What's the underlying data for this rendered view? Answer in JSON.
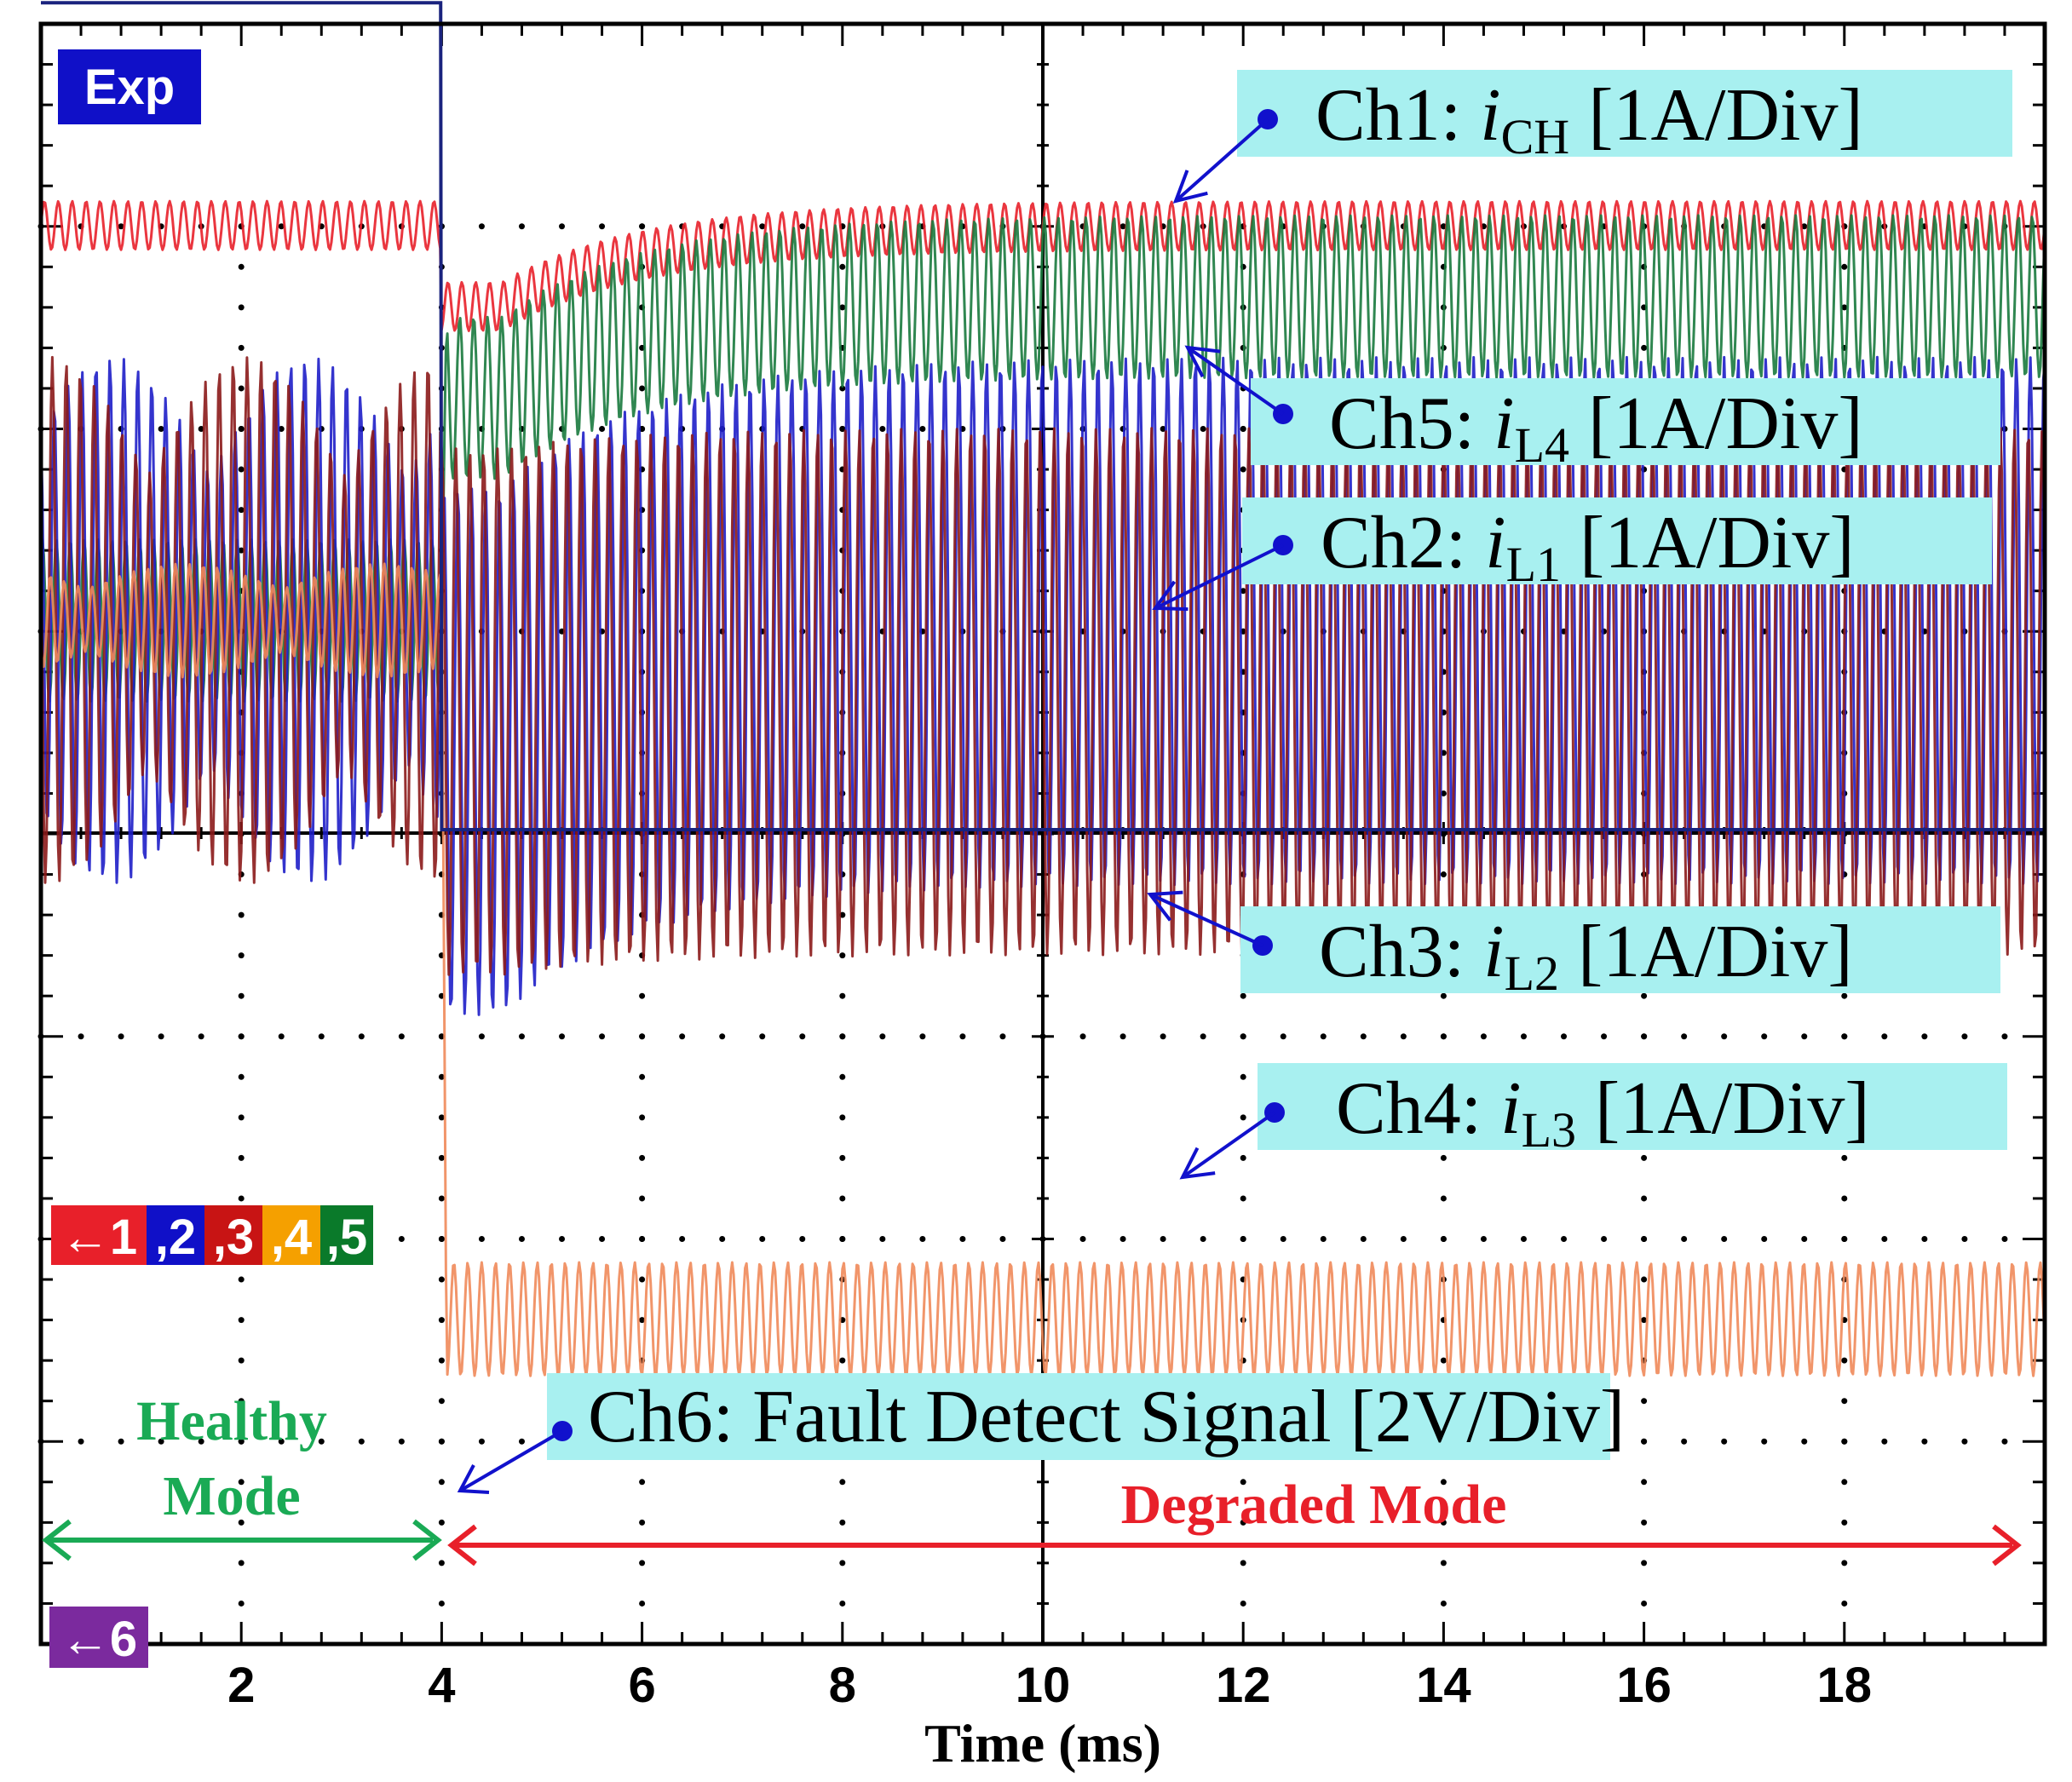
{
  "chart_data": {
    "type": "line",
    "xlabel": "Time (ms)",
    "xlim": [
      0,
      20
    ],
    "x_tick_labels": [
      "2",
      "4",
      "6",
      "8",
      "10",
      "12",
      "14",
      "16",
      "18"
    ],
    "x_ticks": [
      2,
      4,
      6,
      8,
      10,
      12,
      14,
      16,
      18
    ],
    "grid": "dotted",
    "badge": "Exp",
    "channel_markers": {
      "ch1_5": [
        "←1",
        ",2",
        ",3",
        ",4",
        ",5"
      ],
      "ch6": "←6"
    },
    "fault_time_ms": 4,
    "series": [
      {
        "channel": "Ch1",
        "name_prefix": "Ch1: ",
        "var": "i",
        "sub": "CH",
        "scale": " [1A/Div]",
        "color": "#e8202a",
        "before_level_div": 3.0,
        "after_min_div": 2.6,
        "after_level_div": 3.0,
        "ripple_div": 0.12
      },
      {
        "channel": "Ch5",
        "name_prefix": "Ch5: ",
        "var": "i",
        "sub": "L4",
        "scale": " [1A/Div]",
        "color": "#1a7a3e",
        "before_level_div": 1.05,
        "after_min_div": 2.15,
        "after_level_div": 2.65,
        "ripple_div": 0.4
      },
      {
        "channel": "Ch2",
        "name_prefix": "Ch2: ",
        "var": "i",
        "sub": "L1",
        "scale": " [1A/Div]",
        "color": "#1e1ec8",
        "before_level_div": 1.05,
        "after_min_div": 0.4,
        "after_level_div": 1.05,
        "ripple_div": 1.3
      },
      {
        "channel": "Ch3",
        "name_prefix": "Ch3: ",
        "var": "i",
        "sub": "L2",
        "scale": " [1A/Div]",
        "color": "#8b1a1a",
        "before_level_div": 1.05,
        "after_min_div": 0.6,
        "after_level_div": 0.7,
        "ripple_div": 1.3
      },
      {
        "channel": "Ch4",
        "name_prefix": "Ch4: ",
        "var": "i",
        "sub": "L3",
        "scale": " [1A/Div]",
        "color": "#f08a5a",
        "before_level_div": 1.05,
        "after_min_div": -2.4,
        "after_level_div": -2.4,
        "ripple_div": 0.28
      },
      {
        "channel": "Ch6",
        "name": "Ch6: Fault Detect Signal [2V/Div]",
        "color": "#1a237e",
        "before_level_div": 4.1,
        "after_level_div": 0.0
      }
    ],
    "annotations": [
      {
        "text_lines": [
          "Healthy",
          "Mode"
        ],
        "color": "#1aaa55",
        "x_from_ms": 0,
        "x_to_ms": 4
      },
      {
        "text": "Degraded Mode",
        "color": "#e8202a",
        "x_from_ms": 4,
        "x_to_ms": 20
      }
    ],
    "colors": {
      "ch1": "#e8202a",
      "ch2": "#1e1ec8",
      "ch3": "#8b1a1a",
      "ch4": "#f08a5a",
      "ch5": "#1a7a3e",
      "ch6": "#1a237e",
      "label_bg": "#a8f0f0",
      "label_dot": "#1111cc",
      "exp_bg": "#1010c8",
      "ch6_badge": "#7b2a9e",
      "ch4_badge": "#f5a000",
      "ch5_badge": "#0a7a2a"
    }
  }
}
